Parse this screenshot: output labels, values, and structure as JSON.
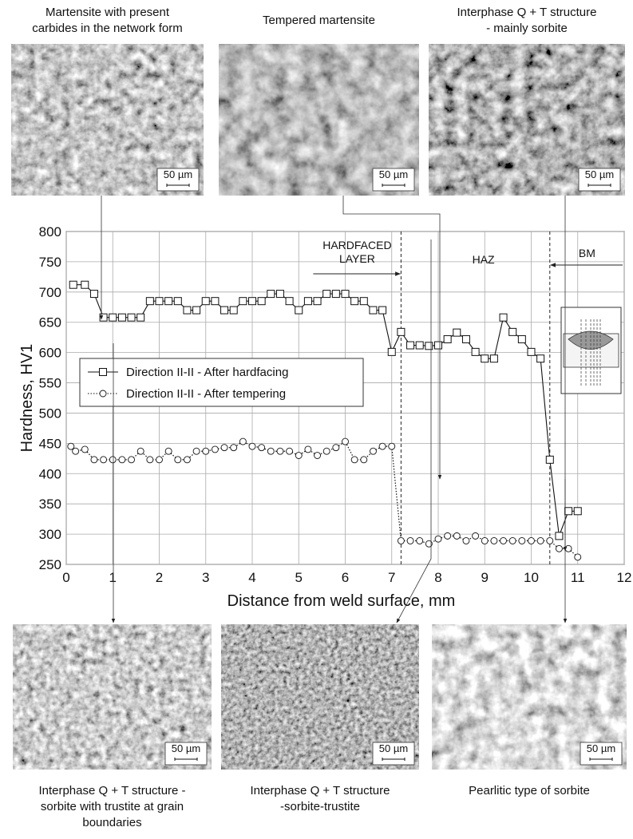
{
  "chart_data": {
    "type": "line",
    "xlabel": "Distance from weld surface, mm",
    "ylabel": "Hardness, HV1",
    "xlim": [
      0,
      12
    ],
    "xticks": [
      0,
      1,
      2,
      3,
      4,
      5,
      6,
      7,
      8,
      9,
      10,
      11,
      12
    ],
    "ylim": [
      250,
      800
    ],
    "yticks": [
      250,
      300,
      350,
      400,
      450,
      500,
      550,
      600,
      650,
      700,
      750,
      800
    ],
    "grid": true,
    "legend_position": "center-left",
    "zones": {
      "labels": [
        "HARDFACED\nLAYER",
        "HAZ",
        "BM"
      ],
      "boundaries": [
        7.2,
        10.4
      ]
    },
    "series": [
      {
        "name": "Direction II-II - After hardfacing",
        "color": "#111111",
        "marker": "square",
        "line_style": "solid",
        "x": [
          0.15,
          0.4,
          0.6,
          0.8,
          1.0,
          1.2,
          1.4,
          1.6,
          1.8,
          2.0,
          2.2,
          2.4,
          2.6,
          2.8,
          3.0,
          3.2,
          3.4,
          3.6,
          3.8,
          4.0,
          4.2,
          4.4,
          4.6,
          4.8,
          5.0,
          5.2,
          5.4,
          5.6,
          5.8,
          6.0,
          6.2,
          6.4,
          6.6,
          6.8,
          7.0,
          7.2,
          7.4,
          7.6,
          7.8,
          8.0,
          8.2,
          8.4,
          8.6,
          8.8,
          9.0,
          9.2,
          9.4,
          9.6,
          9.8,
          10.0,
          10.2,
          10.4,
          10.6,
          10.8,
          11.0
        ],
        "values": [
          712,
          712,
          697,
          658,
          658,
          658,
          658,
          658,
          685,
          685,
          685,
          685,
          670,
          670,
          685,
          685,
          670,
          670,
          685,
          685,
          685,
          697,
          697,
          685,
          670,
          685,
          685,
          697,
          697,
          697,
          685,
          685,
          670,
          670,
          601,
          634,
          612,
          612,
          611,
          612,
          622,
          633,
          622,
          601,
          590,
          590,
          658,
          634,
          622,
          601,
          590,
          423,
          297,
          338,
          338
        ]
      },
      {
        "name": "Direction II-II - After tempering",
        "color": "#111111",
        "marker": "circle",
        "line_style": "dotted",
        "x": [
          0.1,
          0.2,
          0.4,
          0.6,
          0.8,
          1.0,
          1.2,
          1.4,
          1.6,
          1.8,
          2.0,
          2.2,
          2.4,
          2.6,
          2.8,
          3.0,
          3.2,
          3.4,
          3.6,
          3.8,
          4.0,
          4.2,
          4.4,
          4.6,
          4.8,
          5.0,
          5.2,
          5.4,
          5.6,
          5.8,
          6.0,
          6.2,
          6.4,
          6.6,
          6.8,
          7.0,
          7.2,
          7.4,
          7.6,
          7.8,
          8.0,
          8.2,
          8.4,
          8.6,
          8.8,
          9.0,
          9.2,
          9.4,
          9.6,
          9.8,
          10.0,
          10.2,
          10.4,
          10.6,
          10.8,
          11.0
        ],
        "values": [
          445,
          437,
          440,
          423,
          423,
          423,
          423,
          423,
          437,
          423,
          423,
          437,
          423,
          423,
          437,
          437,
          440,
          443,
          443,
          453,
          445,
          443,
          437,
          437,
          437,
          430,
          440,
          430,
          437,
          443,
          453,
          423,
          423,
          437,
          445,
          445,
          289,
          289,
          289,
          284,
          292,
          297,
          297,
          289,
          297,
          289,
          289,
          289,
          289,
          289,
          289,
          289,
          289,
          276,
          276,
          262
        ]
      }
    ]
  },
  "micrographs": [
    {
      "caption": [
        "Martensite with present",
        "carbides in the network form"
      ],
      "scale": "50 µm"
    },
    {
      "caption": [
        "Tempered martensite"
      ],
      "scale": "50 µm"
    },
    {
      "caption": [
        "Interphase Q + T structure",
        "- mainly sorbite"
      ],
      "scale": "50 µm"
    },
    {
      "caption": [
        "Interphase Q + T structure -",
        "sorbite with trustite at grain",
        "boundaries"
      ],
      "scale": "50 µm"
    },
    {
      "caption": [
        "Interphase Q + T structure",
        "-sorbite-trustite"
      ],
      "scale": "50 µm"
    },
    {
      "caption": [
        "Pearlitic type of sorbite"
      ],
      "scale": "50 µm"
    }
  ]
}
